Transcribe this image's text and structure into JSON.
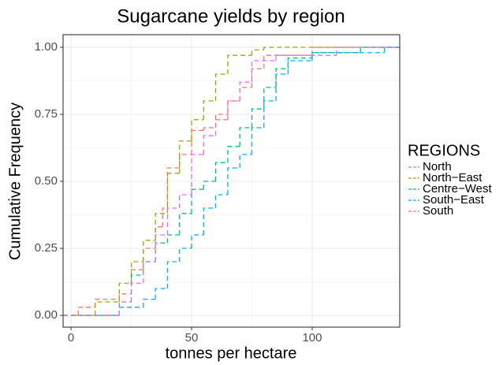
{
  "chart_data": {
    "type": "step",
    "title": "Sugarcane yields by region",
    "x_label": "tonnes per hectare",
    "y_label": "Cumulative Frequency",
    "xlim": [
      -3.3,
      136.3
    ],
    "ylim": [
      -0.044,
      1.047
    ],
    "xticks": [
      0,
      50,
      100
    ],
    "yticks": [
      {
        "value": 0,
        "label": "0.00"
      },
      {
        "value": 0.25,
        "label": "0.25"
      },
      {
        "value": 0.5,
        "label": "0.50"
      },
      {
        "value": 0.75,
        "label": "0.75"
      },
      {
        "value": 1,
        "label": "1.00"
      }
    ],
    "grid": true,
    "legend_title": "REGIONS",
    "legend_position": "right",
    "line_style": "dashed",
    "series": [
      {
        "name": "North",
        "color": "#F8766D",
        "x": [
          3,
          10,
          20,
          25,
          30,
          35,
          38,
          40,
          45,
          50,
          55,
          60,
          65,
          70,
          75,
          80,
          100
        ],
        "values": [
          0.03,
          0.06,
          0.08,
          0.17,
          0.25,
          0.33,
          0.4,
          0.55,
          0.6,
          0.69,
          0.7,
          0.75,
          0.8,
          0.85,
          0.92,
          0.97,
          1.0
        ]
      },
      {
        "name": "North−East",
        "color": "#A3A500",
        "x": [
          2,
          10,
          20,
          25,
          30,
          35,
          40,
          45,
          50,
          55,
          60,
          65,
          75,
          80
        ],
        "values": [
          0,
          0.05,
          0.12,
          0.2,
          0.28,
          0.38,
          0.53,
          0.65,
          0.73,
          0.8,
          0.9,
          0.97,
          0.99,
          1.0
        ]
      },
      {
        "name": "Centre−West",
        "color": "#00BF7D",
        "x": [
          12,
          20,
          25,
          30,
          35,
          40,
          45,
          50,
          55,
          60,
          65,
          70,
          75,
          80,
          85,
          90,
          100,
          120
        ],
        "values": [
          0,
          0.05,
          0.15,
          0.2,
          0.27,
          0.3,
          0.38,
          0.47,
          0.5,
          0.57,
          0.63,
          0.7,
          0.77,
          0.85,
          0.92,
          0.96,
          0.98,
          1.0
        ]
      },
      {
        "name": "South−East",
        "color": "#00B0F6",
        "x": [
          10,
          20,
          30,
          35,
          40,
          45,
          50,
          55,
          60,
          65,
          70,
          75,
          80,
          85,
          90,
          100,
          130
        ],
        "values": [
          0,
          0.03,
          0.06,
          0.1,
          0.2,
          0.25,
          0.3,
          0.4,
          0.45,
          0.55,
          0.6,
          0.7,
          0.8,
          0.9,
          0.95,
          0.98,
          1.0
        ]
      },
      {
        "name": "South",
        "color": "#E76BF3",
        "x": [
          15,
          20,
          25,
          30,
          35,
          40,
          45,
          50,
          55,
          60,
          65,
          70,
          75,
          85,
          110
        ],
        "values": [
          0,
          0.05,
          0.12,
          0.2,
          0.3,
          0.4,
          0.45,
          0.6,
          0.67,
          0.73,
          0.8,
          0.87,
          0.95,
          0.97,
          1.0
        ]
      }
    ]
  }
}
